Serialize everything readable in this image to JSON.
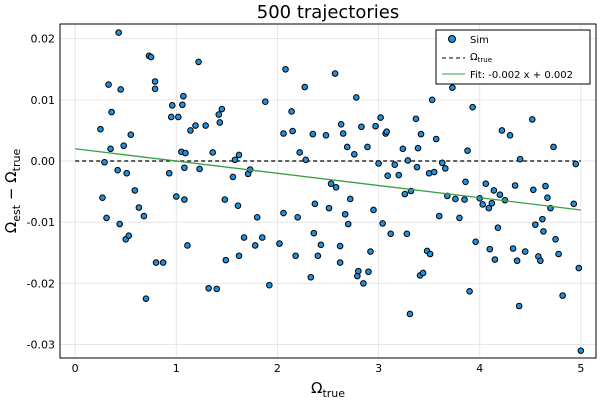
{
  "chart_data": {
    "type": "scatter",
    "title": "500 trajectories",
    "xlabel": {
      "main": "Ω",
      "sub": "true"
    },
    "ylabel": {
      "pre": "Ω",
      "pre_sub": "est",
      "mid": " − Ω",
      "post_sub": "true"
    },
    "xlim": [
      -0.15,
      5.15
    ],
    "ylim": [
      -0.0322,
      0.0224
    ],
    "x_ticks": [
      0,
      1,
      2,
      3,
      4,
      5
    ],
    "y_ticks": [
      -0.03,
      -0.02,
      -0.01,
      0.0,
      0.01,
      0.02
    ],
    "x_tick_labels": [
      "0",
      "1",
      "2",
      "3",
      "4",
      "5"
    ],
    "y_tick_labels": [
      "-0.03",
      "-0.02",
      "-0.01",
      "0.00",
      "0.01",
      "0.02"
    ],
    "grid": true,
    "legend_position": "top-right",
    "colors": {
      "marker_fill": "#1f8fe0",
      "marker_edge": "#000000",
      "fit_line": "#3aa045",
      "true_line": "#000000"
    },
    "series": [
      {
        "name": "Sim",
        "kind": "scatter",
        "points": [
          [
            0.25,
            0.0052
          ],
          [
            0.27,
            -0.006
          ],
          [
            0.29,
            -0.0002
          ],
          [
            0.31,
            -0.0093
          ],
          [
            0.33,
            0.0125
          ],
          [
            0.35,
            0.002
          ],
          [
            0.36,
            0.008
          ],
          [
            0.42,
            -0.0015
          ],
          [
            0.43,
            0.021
          ],
          [
            0.44,
            -0.0103
          ],
          [
            0.45,
            0.0117
          ],
          [
            0.48,
            0.0025
          ],
          [
            0.5,
            -0.0128
          ],
          [
            0.51,
            -0.002
          ],
          [
            0.53,
            -0.0122
          ],
          [
            0.55,
            0.0043
          ],
          [
            0.59,
            -0.0048
          ],
          [
            0.63,
            -0.0076
          ],
          [
            0.68,
            -0.009
          ],
          [
            0.7,
            -0.0225
          ],
          [
            0.73,
            0.0172
          ],
          [
            0.75,
            0.017
          ],
          [
            0.79,
            0.0118
          ],
          [
            0.79,
            0.013
          ],
          [
            0.8,
            -0.0166
          ],
          [
            0.87,
            -0.0166
          ],
          [
            0.93,
            -0.002
          ],
          [
            0.95,
            0.0072
          ],
          [
            0.96,
            0.0091
          ],
          [
            1.0,
            -0.0058
          ],
          [
            1.02,
            0.0072
          ],
          [
            1.05,
            0.0015
          ],
          [
            1.06,
            0.0092
          ],
          [
            1.07,
            0.0106
          ],
          [
            1.08,
            -0.0011
          ],
          [
            1.08,
            -0.0063
          ],
          [
            1.09,
            0.0013
          ],
          [
            1.11,
            -0.0138
          ],
          [
            1.14,
            0.005
          ],
          [
            1.19,
            0.0058
          ],
          [
            1.22,
            0.0162
          ],
          [
            1.23,
            -0.0013
          ],
          [
            1.29,
            0.0058
          ],
          [
            1.32,
            -0.0208
          ],
          [
            1.36,
            0.0014
          ],
          [
            1.4,
            -0.0209
          ],
          [
            1.42,
            0.0076
          ],
          [
            1.43,
            0.0063
          ],
          [
            1.45,
            0.0085
          ],
          [
            1.48,
            -0.0063
          ],
          [
            1.49,
            -0.0162
          ],
          [
            1.56,
            -0.0026
          ],
          [
            1.58,
            0.0002
          ],
          [
            1.61,
            -0.0073
          ],
          [
            1.62,
            -0.0155
          ],
          [
            1.62,
            0.001
          ],
          [
            1.67,
            -0.0125
          ],
          [
            1.71,
            -0.0021
          ],
          [
            1.73,
            -0.0014
          ],
          [
            1.78,
            -0.0138
          ],
          [
            1.8,
            -0.0092
          ],
          [
            1.85,
            -0.0125
          ],
          [
            1.88,
            0.0097
          ],
          [
            1.92,
            -0.0203
          ],
          [
            2.02,
            -0.0135
          ],
          [
            2.06,
            0.0045
          ],
          [
            2.06,
            -0.0085
          ],
          [
            2.08,
            0.015
          ],
          [
            2.14,
            0.0081
          ],
          [
            2.15,
            0.0049
          ],
          [
            2.18,
            -0.0155
          ],
          [
            2.2,
            -0.0092
          ],
          [
            2.22,
            0.0014
          ],
          [
            2.27,
            0.0121
          ],
          [
            2.28,
            0.0002
          ],
          [
            2.33,
            -0.019
          ],
          [
            2.35,
            0.0044
          ],
          [
            2.36,
            -0.0118
          ],
          [
            2.37,
            -0.007
          ],
          [
            2.4,
            -0.0155
          ],
          [
            2.43,
            -0.0137
          ],
          [
            2.48,
            0.0042
          ],
          [
            2.51,
            -0.0077
          ],
          [
            2.53,
            -0.0037
          ],
          [
            2.57,
            0.0143
          ],
          [
            2.58,
            -0.0043
          ],
          [
            2.62,
            -0.0139
          ],
          [
            2.62,
            -0.0166
          ],
          [
            2.63,
            0.006
          ],
          [
            2.65,
            0.0045
          ],
          [
            2.67,
            -0.0087
          ],
          [
            2.69,
            0.0023
          ],
          [
            2.7,
            -0.0103
          ],
          [
            2.72,
            -0.0062
          ],
          [
            2.76,
            0.0011
          ],
          [
            2.78,
            0.0104
          ],
          [
            2.79,
            -0.0188
          ],
          [
            2.8,
            -0.018
          ],
          [
            2.83,
            0.0056
          ],
          [
            2.85,
            -0.02
          ],
          [
            2.89,
            0.0023
          ],
          [
            2.9,
            -0.0181
          ],
          [
            2.92,
            -0.0148
          ],
          [
            2.95,
            -0.008
          ],
          [
            2.97,
            0.0057
          ],
          [
            3.0,
            -0.0004
          ],
          [
            3.02,
            0.0071
          ],
          [
            3.04,
            -0.0102
          ],
          [
            3.07,
            0.0045
          ],
          [
            3.08,
            0.0048
          ],
          [
            3.09,
            -0.0024
          ],
          [
            3.12,
            -0.0119
          ],
          [
            3.16,
            -0.0006
          ],
          [
            3.2,
            -0.0023
          ],
          [
            3.24,
            0.002
          ],
          [
            3.26,
            -0.0054
          ],
          [
            3.28,
            -0.0119
          ],
          [
            3.29,
            0.0001
          ],
          [
            3.31,
            -0.025
          ],
          [
            3.32,
            -0.0049
          ],
          [
            3.37,
            0.0069
          ],
          [
            3.38,
            -0.001
          ],
          [
            3.39,
            0.0021
          ],
          [
            3.41,
            -0.0187
          ],
          [
            3.42,
            0.0044
          ],
          [
            3.44,
            -0.0183
          ],
          [
            3.48,
            -0.0147
          ],
          [
            3.5,
            -0.002
          ],
          [
            3.51,
            -0.0152
          ],
          [
            3.53,
            0.01
          ],
          [
            3.55,
            -0.0018
          ],
          [
            3.57,
            0.0036
          ],
          [
            3.6,
            -0.009
          ],
          [
            3.63,
            -0.0003
          ],
          [
            3.66,
            -0.0012
          ],
          [
            3.68,
            -0.0057
          ],
          [
            3.73,
            0.012
          ],
          [
            3.76,
            -0.0062
          ],
          [
            3.8,
            -0.0093
          ],
          [
            3.85,
            -0.0063
          ],
          [
            3.86,
            -0.0034
          ],
          [
            3.88,
            0.0017
          ],
          [
            3.9,
            -0.0213
          ],
          [
            3.93,
            0.0088
          ],
          [
            3.96,
            -0.0132
          ],
          [
            4.0,
            -0.0061
          ],
          [
            4.03,
            -0.0071
          ],
          [
            4.06,
            -0.0037
          ],
          [
            4.09,
            -0.0077
          ],
          [
            4.1,
            -0.0144
          ],
          [
            4.12,
            -0.0069
          ],
          [
            4.14,
            -0.0048
          ],
          [
            4.15,
            -0.0161
          ],
          [
            4.18,
            -0.0109
          ],
          [
            4.2,
            -0.0055
          ],
          [
            4.22,
            0.005
          ],
          [
            4.25,
            -0.0064
          ],
          [
            4.3,
            0.0042
          ],
          [
            4.33,
            -0.0143
          ],
          [
            4.35,
            -0.004
          ],
          [
            4.37,
            -0.0163
          ],
          [
            4.39,
            -0.0237
          ],
          [
            4.4,
            0.0003
          ],
          [
            4.45,
            -0.0148
          ],
          [
            4.52,
            0.0068
          ],
          [
            4.53,
            -0.0047
          ],
          [
            4.55,
            -0.0104
          ],
          [
            4.58,
            -0.0156
          ],
          [
            4.6,
            -0.0163
          ],
          [
            4.62,
            -0.0095
          ],
          [
            4.63,
            -0.0115
          ],
          [
            4.65,
            -0.0041
          ],
          [
            4.67,
            -0.006
          ],
          [
            4.7,
            -0.0077
          ],
          [
            4.73,
            0.0023
          ],
          [
            4.75,
            -0.0128
          ],
          [
            4.78,
            -0.0152
          ],
          [
            4.82,
            -0.022
          ],
          [
            4.93,
            -0.007
          ],
          [
            4.95,
            -0.0005
          ],
          [
            4.98,
            -0.0175
          ],
          [
            5.0,
            -0.031
          ]
        ]
      },
      {
        "name": "Ω",
        "name_sub": "true",
        "kind": "hline",
        "y": 0.0
      },
      {
        "name": "Fit: -0.002 x + 0.002",
        "kind": "line",
        "slope": -0.002,
        "intercept": 0.002,
        "x_range": [
          0.0,
          5.0
        ]
      }
    ]
  }
}
